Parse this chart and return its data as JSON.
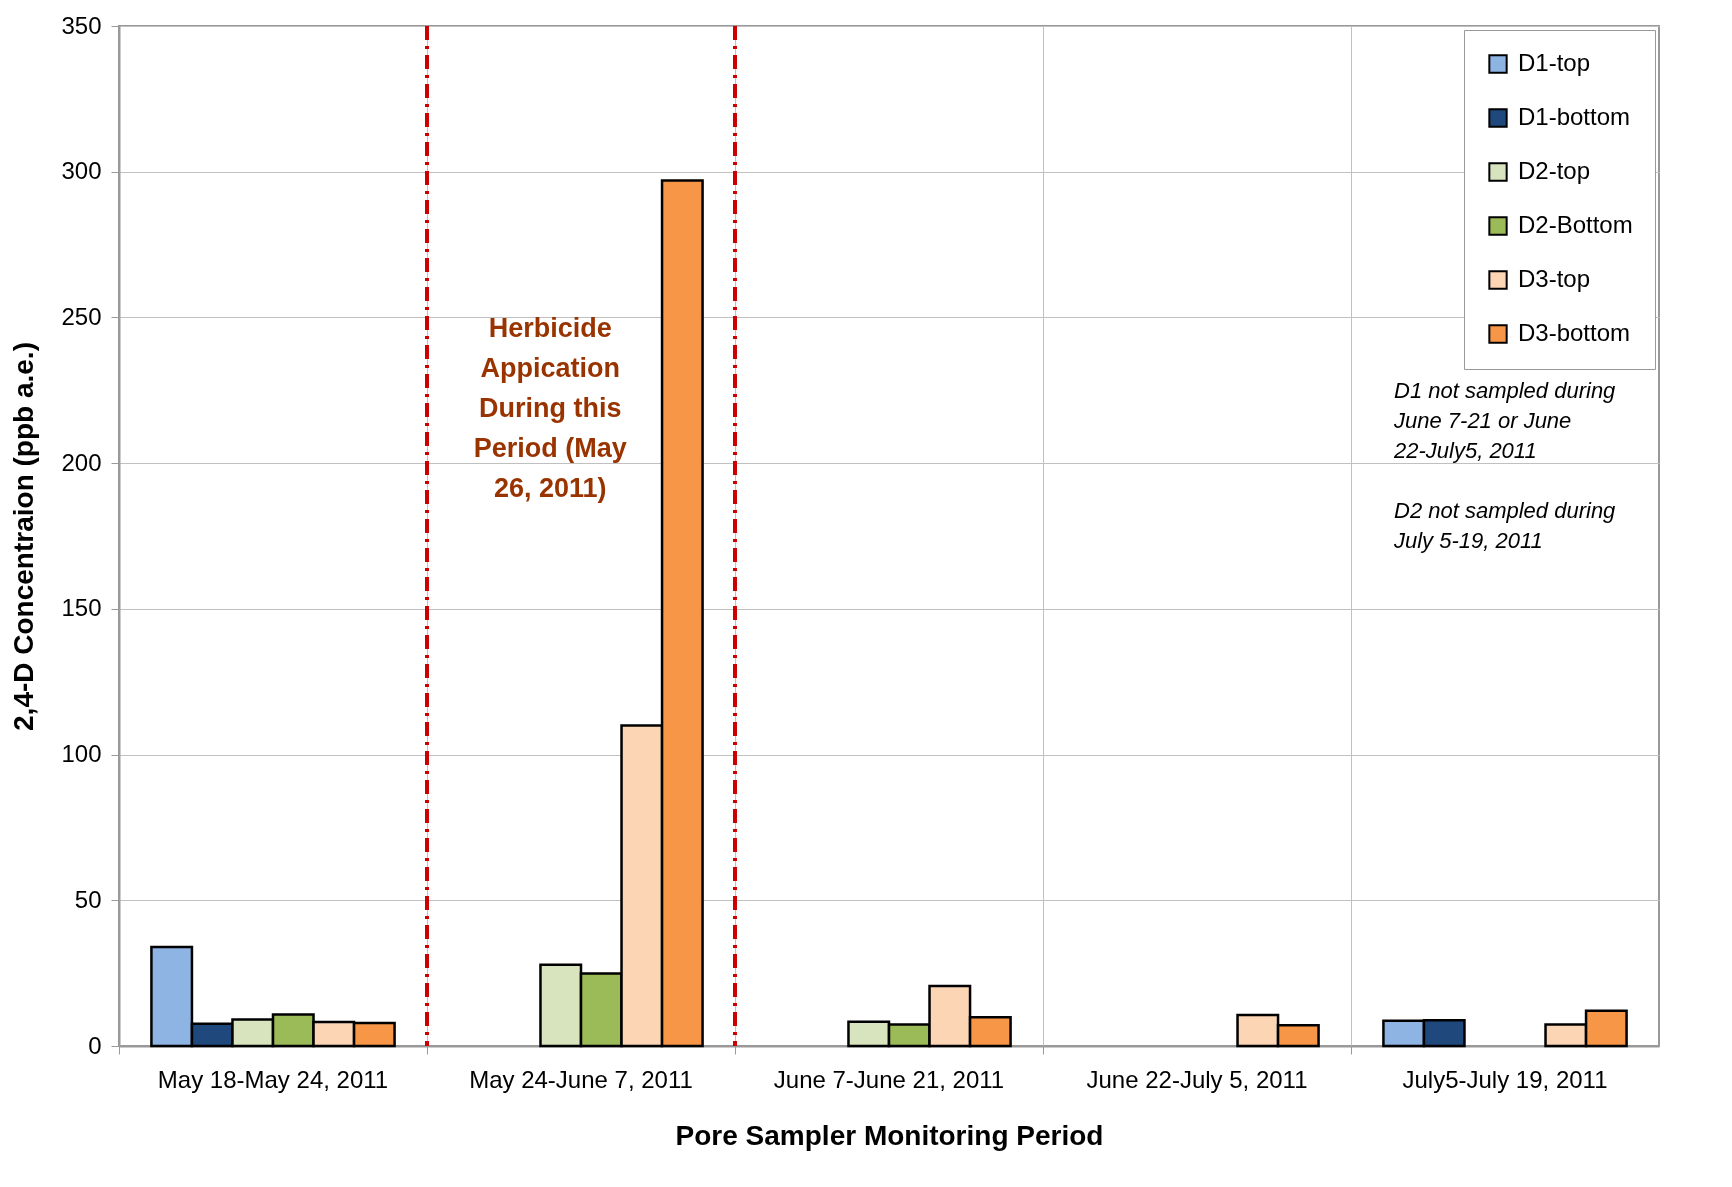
{
  "chart_data": {
    "type": "bar",
    "xlabel": "Pore Sampler Monitoring Period",
    "ylabel": "2,4-D Concentraion (ppb a.e.)",
    "categories": [
      "May 18-May 24, 2011",
      "May 24-June 7, 2011",
      "June 7-June 21, 2011",
      "June 22-July 5, 2011",
      "July5-July 19, 2011"
    ],
    "series": [
      {
        "name": "D1-top",
        "color": "#8eb4e3",
        "values": [
          34,
          null,
          null,
          null,
          8.7
        ]
      },
      {
        "name": "D1-bottom",
        "color": "#1f497d",
        "values": [
          7.6,
          null,
          null,
          null,
          8.8
        ]
      },
      {
        "name": "D2-top",
        "color": "#d7e4bd",
        "values": [
          9.1,
          27.9,
          8.3,
          null,
          null
        ]
      },
      {
        "name": "D2-Bottom",
        "color": "#9bbb59",
        "values": [
          10.8,
          24.9,
          7.4,
          null,
          null
        ]
      },
      {
        "name": "D3-top",
        "color": "#fcd5b5",
        "values": [
          8.2,
          110,
          20.6,
          10.6,
          7.4
        ]
      },
      {
        "name": "D3-bottom",
        "color": "#f79646",
        "values": [
          7.9,
          297,
          9.9,
          7.1,
          12.1
        ]
      }
    ],
    "ylim": [
      0,
      350
    ],
    "yticks": [
      0,
      50,
      100,
      150,
      200,
      250,
      300,
      350
    ],
    "grid": true,
    "legend": "top right",
    "annotations": [
      "Herbicide Appication During this Period (May 26, 2011)",
      "D1  not sampled during June 7-21 or June 22-July5, 2011",
      "D2 not sampled during July 5-19, 2011"
    ]
  }
}
